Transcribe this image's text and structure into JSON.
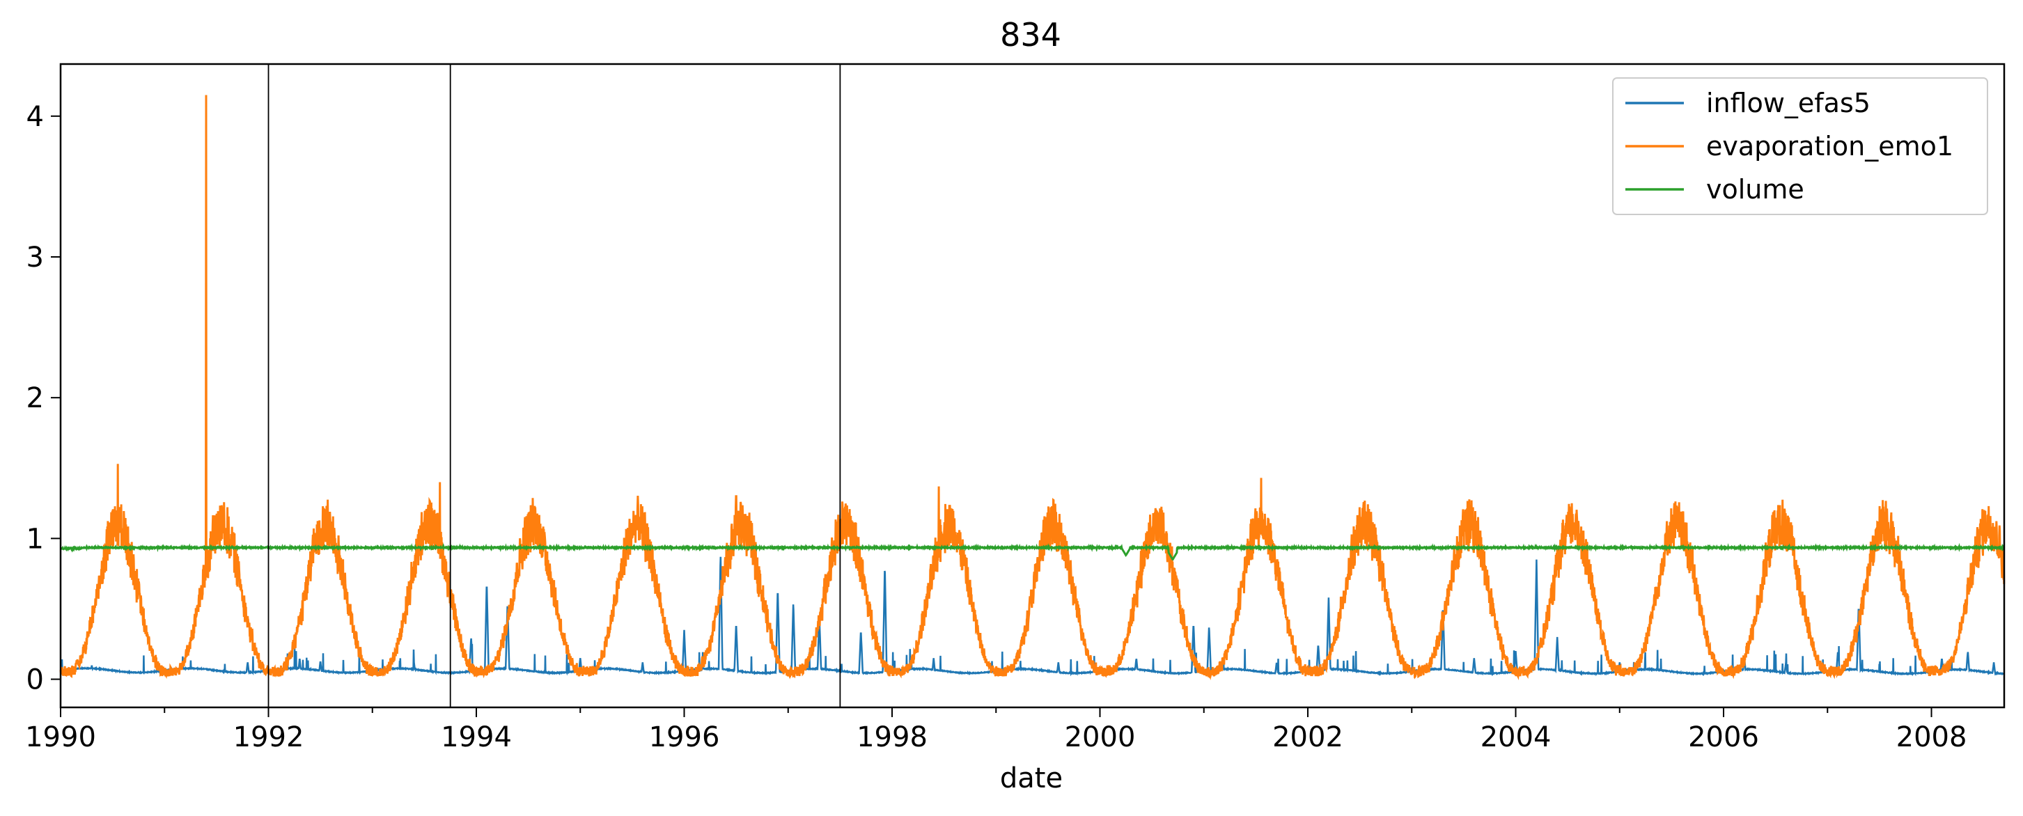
{
  "chart_data": {
    "type": "line",
    "title": "834",
    "xlabel": "date",
    "ylabel": "",
    "xlim": [
      1990.0,
      2008.7
    ],
    "ylim": [
      -0.2,
      4.37
    ],
    "x_ticks": [
      {
        "value": 1990,
        "label": "1990"
      },
      {
        "value": 1992,
        "label": "1992"
      },
      {
        "value": 1994,
        "label": "1994"
      },
      {
        "value": 1996,
        "label": "1996"
      },
      {
        "value": 1998,
        "label": "1998"
      },
      {
        "value": 2000,
        "label": "2000"
      },
      {
        "value": 2002,
        "label": "2002"
      },
      {
        "value": 2004,
        "label": "2004"
      },
      {
        "value": 2006,
        "label": "2006"
      },
      {
        "value": 2008,
        "label": "2008"
      }
    ],
    "y_ticks": [
      {
        "value": 0,
        "label": "0"
      },
      {
        "value": 1,
        "label": "1"
      },
      {
        "value": 2,
        "label": "2"
      },
      {
        "value": 3,
        "label": "3"
      },
      {
        "value": 4,
        "label": "4"
      }
    ],
    "vertical_lines": [
      1992.0,
      1993.75,
      1997.5
    ],
    "legend_position": "upper right",
    "series": [
      {
        "name": "inflow_efas5",
        "color": "#1f77b4",
        "baseline": 0.06,
        "spikes": [
          [
            1990.3,
            0.1
          ],
          [
            1991.8,
            0.12
          ],
          [
            1992.3,
            0.15
          ],
          [
            1992.5,
            0.13
          ],
          [
            1993.4,
            0.12
          ],
          [
            1993.95,
            0.3
          ],
          [
            1994.1,
            0.7
          ],
          [
            1994.3,
            0.55
          ],
          [
            1995.0,
            0.15
          ],
          [
            1995.6,
            0.12
          ],
          [
            1996.0,
            0.35
          ],
          [
            1996.35,
            0.9
          ],
          [
            1996.5,
            0.4
          ],
          [
            1996.9,
            0.65
          ],
          [
            1997.05,
            0.55
          ],
          [
            1997.3,
            0.45
          ],
          [
            1997.7,
            0.35
          ],
          [
            1997.93,
            0.82
          ],
          [
            1998.4,
            0.15
          ],
          [
            1999.6,
            0.12
          ],
          [
            2000.35,
            0.15
          ],
          [
            2000.9,
            0.4
          ],
          [
            2001.05,
            0.38
          ],
          [
            2001.7,
            0.12
          ],
          [
            2002.1,
            0.25
          ],
          [
            2002.2,
            0.58
          ],
          [
            2003.3,
            0.52
          ],
          [
            2003.6,
            0.15
          ],
          [
            2004.0,
            0.2
          ],
          [
            2004.2,
            0.85
          ],
          [
            2004.4,
            0.3
          ],
          [
            2005.0,
            0.12
          ],
          [
            2006.2,
            0.15
          ],
          [
            2006.6,
            0.12
          ],
          [
            2007.1,
            0.2
          ],
          [
            2007.3,
            0.53
          ],
          [
            2008.1,
            0.15
          ],
          [
            2008.35,
            0.2
          ],
          [
            2008.6,
            0.12
          ]
        ]
      },
      {
        "name": "evaporation_emo1",
        "color": "#ff7f0e",
        "seasonal_min": 0.05,
        "seasonal_peak": 1.1,
        "spikes": [
          [
            1991.4,
            4.15
          ],
          [
            1990.55,
            1.53
          ],
          [
            1993.65,
            1.4
          ],
          [
            2001.55,
            1.43
          ],
          [
            1996.5,
            1.3
          ],
          [
            1998.45,
            1.37
          ]
        ]
      },
      {
        "name": "volume",
        "color": "#2ca02c",
        "baseline": 0.935,
        "dips": [
          [
            2000.25,
            0.88
          ],
          [
            2000.7,
            0.85
          ]
        ]
      }
    ]
  }
}
